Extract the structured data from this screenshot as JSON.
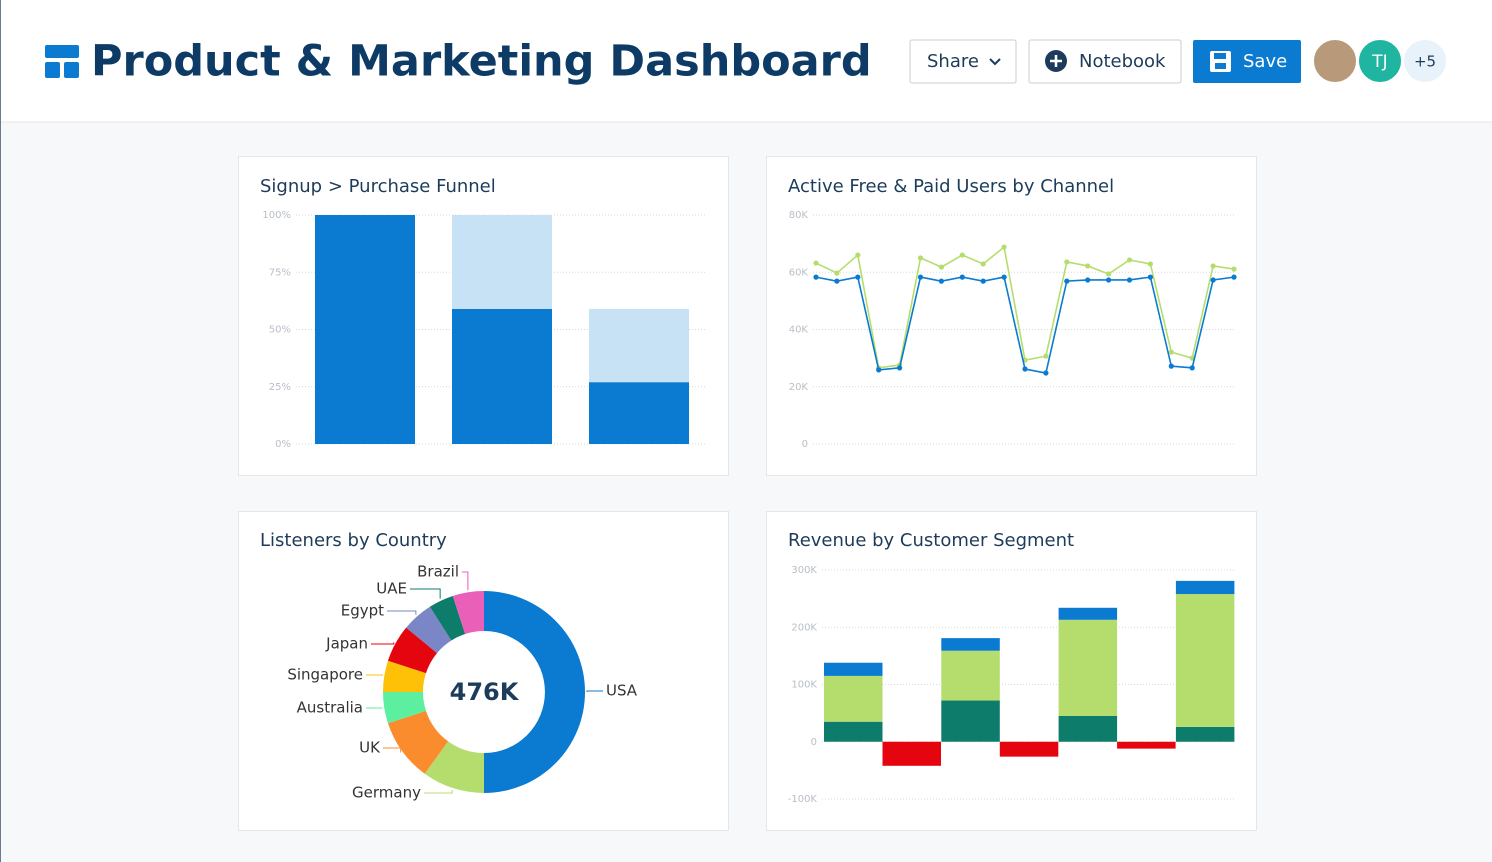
{
  "header": {
    "title": "Product & Marketing Dashboard",
    "buttons": [
      "Share",
      "Notebook",
      "Save"
    ],
    "avatars": [
      "TJ",
      "+5"
    ]
  },
  "chart_data": [
    {
      "type": "bar",
      "title": "Signup > Purchase Funnel",
      "categories": [
        null,
        null,
        null
      ],
      "series": [
        {
          "color": "#0a7bd1",
          "values": [
            100,
            59,
            27
          ]
        },
        {
          "color": "#c6e2f4",
          "values": [
            0,
            41,
            32
          ]
        }
      ],
      "ylim": [
        0,
        100
      ],
      "yticks": [
        {
          "value": 0,
          "label": "0%"
        },
        {
          "value": 25,
          "label": "25%"
        },
        {
          "value": 50,
          "label": "50%"
        },
        {
          "value": 75,
          "label": "75%"
        },
        {
          "value": 100,
          "label": "100%"
        }
      ],
      "grid": true
    },
    {
      "type": "line",
      "title": "Active Free & Paid Users by Channel",
      "categories": [
        null,
        null,
        null,
        null,
        null,
        null,
        null,
        null,
        null,
        null,
        null,
        null,
        null,
        null,
        null,
        null,
        null,
        null,
        null,
        null,
        null
      ],
      "series": [
        {
          "color": "#b5dd6e",
          "values": [
            63.2,
            59.7,
            66.0,
            26.6,
            27.6,
            65.0,
            61.8,
            66.0,
            62.9,
            68.8,
            29.3,
            30.7,
            63.6,
            62.2,
            59.4,
            64.3,
            62.9,
            32.1,
            30.0,
            62.2,
            61.1
          ]
        },
        {
          "color": "#0a7bd1",
          "values": [
            58.3,
            56.9,
            58.3,
            25.9,
            26.6,
            58.3,
            56.9,
            58.3,
            56.9,
            58.3,
            26.2,
            24.8,
            56.9,
            57.3,
            57.3,
            57.3,
            58.3,
            27.2,
            26.6,
            57.3,
            58.3
          ]
        }
      ],
      "ylim": [
        0,
        80
      ],
      "yticks": [
        0,
        {
          "value": 20,
          "label": "20K"
        },
        {
          "value": 40,
          "label": "40K"
        },
        {
          "value": 60,
          "label": "60K"
        },
        {
          "value": 80,
          "label": "80K"
        }
      ],
      "grid": true
    },
    {
      "type": "donut",
      "title": "Listeners by Country",
      "center_label": "476K",
      "categories": [
        "USA",
        "Germany",
        "UK",
        "Australia",
        "Singapore",
        "Japan",
        "Egypt",
        "UAE",
        "Brazil"
      ],
      "values": [
        50,
        10,
        10,
        5,
        5,
        6,
        5,
        4,
        5
      ],
      "colors": [
        "#0a7bd1",
        "#b5dd6e",
        "#fb8c2e",
        "#5cefa0",
        "#ffc107",
        "#e4050f",
        "#7b86c6",
        "#0e7c6b",
        "#ea5fb8"
      ]
    },
    {
      "type": "bar",
      "title": "Revenue by Customer Segment",
      "categories": [
        null,
        null,
        null,
        null
      ],
      "series": [
        {
          "color": "#0e7c6b",
          "values": [
            35,
            72,
            45,
            26
          ]
        },
        {
          "color": "#b5dd6e",
          "values": [
            80,
            87,
            168,
            232
          ]
        },
        {
          "color": "#0a7bd1",
          "values": [
            23,
            22,
            21,
            23
          ]
        },
        {
          "color": "#e4050f",
          "values": [
            -42,
            -26,
            -12,
            null
          ]
        }
      ],
      "ylim": [
        -100,
        300
      ],
      "yticks": [
        {
          "value": -100,
          "label": "-100K"
        },
        0,
        {
          "value": 100,
          "label": "100K"
        },
        {
          "value": 200,
          "label": "200K"
        },
        {
          "value": 300,
          "label": "300K"
        }
      ],
      "grid": true
    }
  ]
}
